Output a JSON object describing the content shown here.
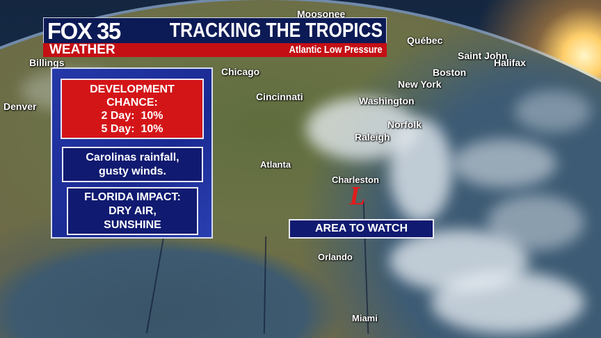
{
  "header": {
    "station": "FOX 35",
    "brand": "WEATHER",
    "title": "TRACKING THE TROPICS",
    "subtitle": "Atlantic Low Pressure",
    "colors": {
      "blue": "#0c1a55",
      "red": "#c40f14"
    }
  },
  "panel": {
    "development": {
      "line1": "DEVELOPMENT",
      "line2": "CHANCE:",
      "day2": "2 Day:  10%",
      "day5": "5 Day:  10%",
      "color": "#d41518"
    },
    "rainfall": {
      "line1": "Carolinas rainfall,",
      "line2": "gusty winds."
    },
    "florida": {
      "line1": "FLORIDA IMPACT:",
      "line2": "DRY AIR,",
      "line3": "SUNSHINE"
    }
  },
  "map": {
    "area_label": "AREA TO WATCH",
    "low_symbol": "L",
    "low_color": "#e21b1b",
    "cities": [
      "Moosonee",
      "Québec",
      "Saint John",
      "Halifax",
      "Boston",
      "Chicago",
      "New York",
      "Cincinnati",
      "Washington",
      "Norfolk",
      "Raleigh",
      "Atlanta",
      "Charleston",
      "Orlando",
      "Miami",
      "Denver",
      "Billings"
    ]
  }
}
